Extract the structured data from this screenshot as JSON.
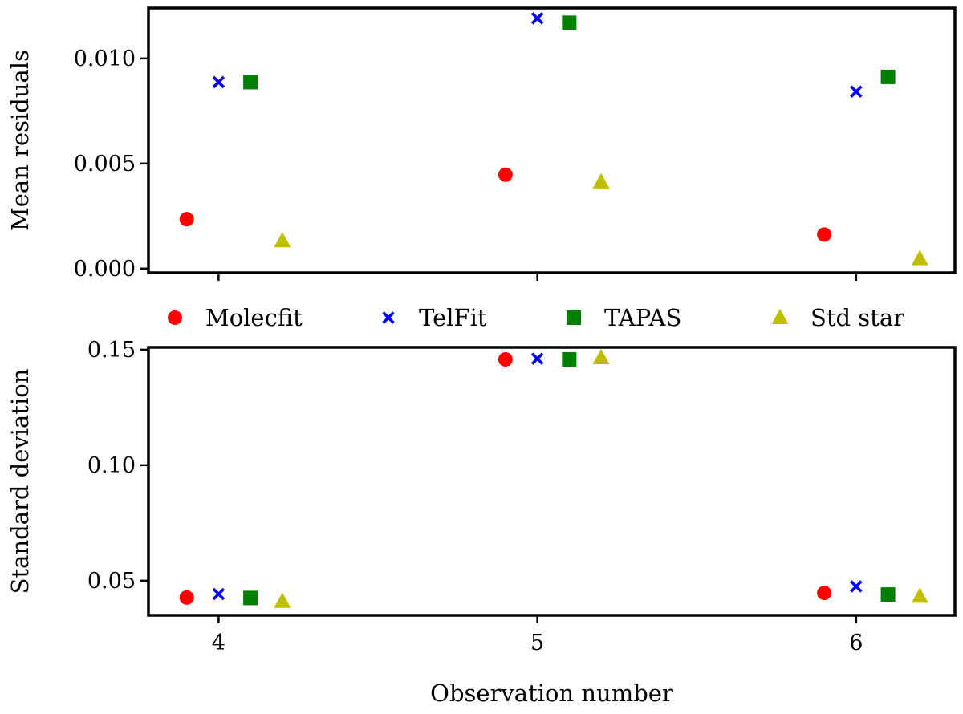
{
  "chart_data": [
    {
      "type": "scatter",
      "xlabel": "",
      "ylabel": "Mean residuals",
      "xlim": [
        3.78,
        6.31
      ],
      "ylim": [
        -0.0002,
        0.0124
      ],
      "xticks": [
        4,
        5,
        6
      ],
      "xtick_labels": [
        "",
        "",
        ""
      ],
      "yticks": [
        0.0,
        0.005,
        0.01
      ],
      "ytick_labels": [
        "0.000",
        "0.005",
        "0.010"
      ],
      "series": [
        {
          "name": "Molecfit",
          "marker": "circle",
          "color": "#ff0000",
          "x": [
            3.9,
            4.9,
            5.9
          ],
          "y": [
            0.00235,
            0.00447,
            0.00162
          ]
        },
        {
          "name": "TelFit",
          "marker": "x",
          "color": "#0000ff",
          "x": [
            4.0,
            5.0,
            6.0
          ],
          "y": [
            0.00887,
            0.01191,
            0.00842
          ]
        },
        {
          "name": "TAPAS",
          "marker": "square",
          "color": "#008000",
          "x": [
            4.1,
            5.1,
            6.1
          ],
          "y": [
            0.00887,
            0.0117,
            0.00912
          ]
        },
        {
          "name": "Std star",
          "marker": "triangle",
          "color": "#bfbf00",
          "x": [
            4.2,
            5.2,
            6.2
          ],
          "y": [
            0.00132,
            0.00412,
            0.00047
          ]
        }
      ]
    },
    {
      "type": "scatter",
      "xlabel": "Observation number",
      "ylabel": "Standard deviation",
      "xlim": [
        3.78,
        6.31
      ],
      "ylim": [
        0.035,
        0.151
      ],
      "xticks": [
        4,
        5,
        6
      ],
      "xtick_labels": [
        "4",
        "5",
        "6"
      ],
      "yticks": [
        0.05,
        0.1,
        0.15
      ],
      "ytick_labels": [
        "0.05",
        "0.10",
        "0.15"
      ],
      "series": [
        {
          "name": "Molecfit",
          "marker": "circle",
          "color": "#ff0000",
          "x": [
            3.9,
            4.9,
            5.9
          ],
          "y": [
            0.0427,
            0.1458,
            0.0447
          ]
        },
        {
          "name": "TelFit",
          "marker": "x",
          "color": "#0000ff",
          "x": [
            4.0,
            5.0,
            6.0
          ],
          "y": [
            0.0442,
            0.1461,
            0.0475
          ]
        },
        {
          "name": "TAPAS",
          "marker": "square",
          "color": "#008000",
          "x": [
            4.1,
            5.1,
            6.1
          ],
          "y": [
            0.0425,
            0.1458,
            0.044
          ]
        },
        {
          "name": "Std star",
          "marker": "triangle",
          "color": "#bfbf00",
          "x": [
            4.2,
            5.2,
            6.2
          ],
          "y": [
            0.041,
            0.1465,
            0.0432
          ]
        }
      ]
    }
  ],
  "legend": {
    "placement": "between-panels",
    "entries": [
      {
        "label": "Molecfit",
        "marker": "circle",
        "color": "#ff0000"
      },
      {
        "label": "TelFit",
        "marker": "x",
        "color": "#0000ff"
      },
      {
        "label": "TAPAS",
        "marker": "square",
        "color": "#008000"
      },
      {
        "label": "Std star",
        "marker": "triangle",
        "color": "#bfbf00"
      }
    ]
  }
}
